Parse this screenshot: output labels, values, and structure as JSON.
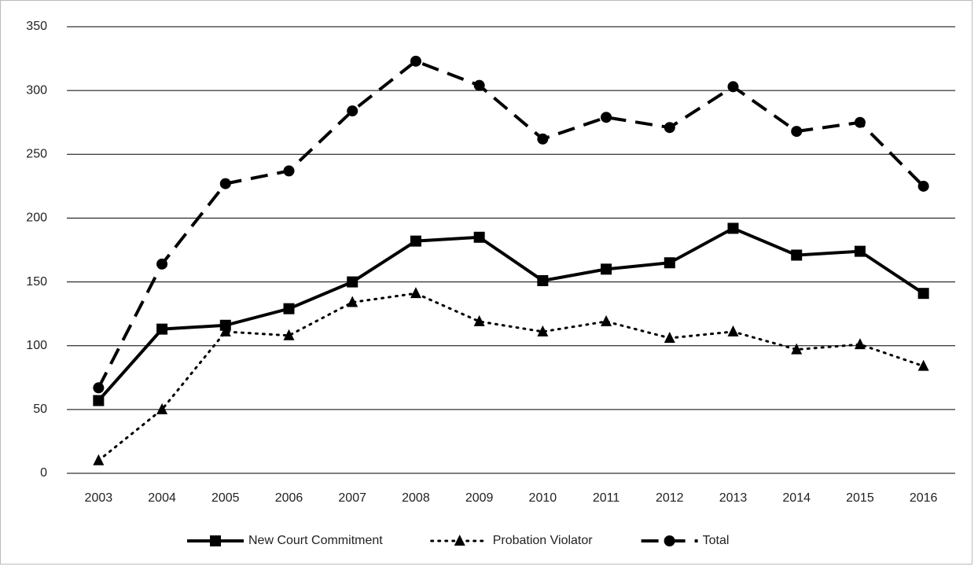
{
  "chart_data": {
    "type": "line",
    "categories": [
      "2003",
      "2004",
      "2005",
      "2006",
      "2007",
      "2008",
      "2009",
      "2010",
      "2011",
      "2012",
      "2013",
      "2014",
      "2015",
      "2016"
    ],
    "series": [
      {
        "name": "New Court Commitment",
        "color": "#000000",
        "dash": "solid",
        "marker": "square",
        "values": [
          57,
          113,
          116,
          129,
          150,
          182,
          185,
          151,
          160,
          165,
          192,
          171,
          174,
          141
        ]
      },
      {
        "name": "Probation Violator",
        "color": "#000000",
        "dash": "dotted",
        "marker": "triangle",
        "values": [
          10,
          50,
          111,
          108,
          134,
          141,
          119,
          111,
          119,
          106,
          111,
          97,
          101,
          84
        ]
      },
      {
        "name": "Total",
        "color": "#000000",
        "dash": "dashed",
        "marker": "circle",
        "values": [
          67,
          164,
          227,
          237,
          284,
          323,
          304,
          262,
          279,
          271,
          303,
          268,
          275,
          225
        ]
      }
    ],
    "ylim": [
      0,
      350
    ],
    "yticks": [
      0,
      50,
      100,
      150,
      200,
      250,
      300,
      350
    ],
    "grid": true,
    "legend": "bottom"
  }
}
